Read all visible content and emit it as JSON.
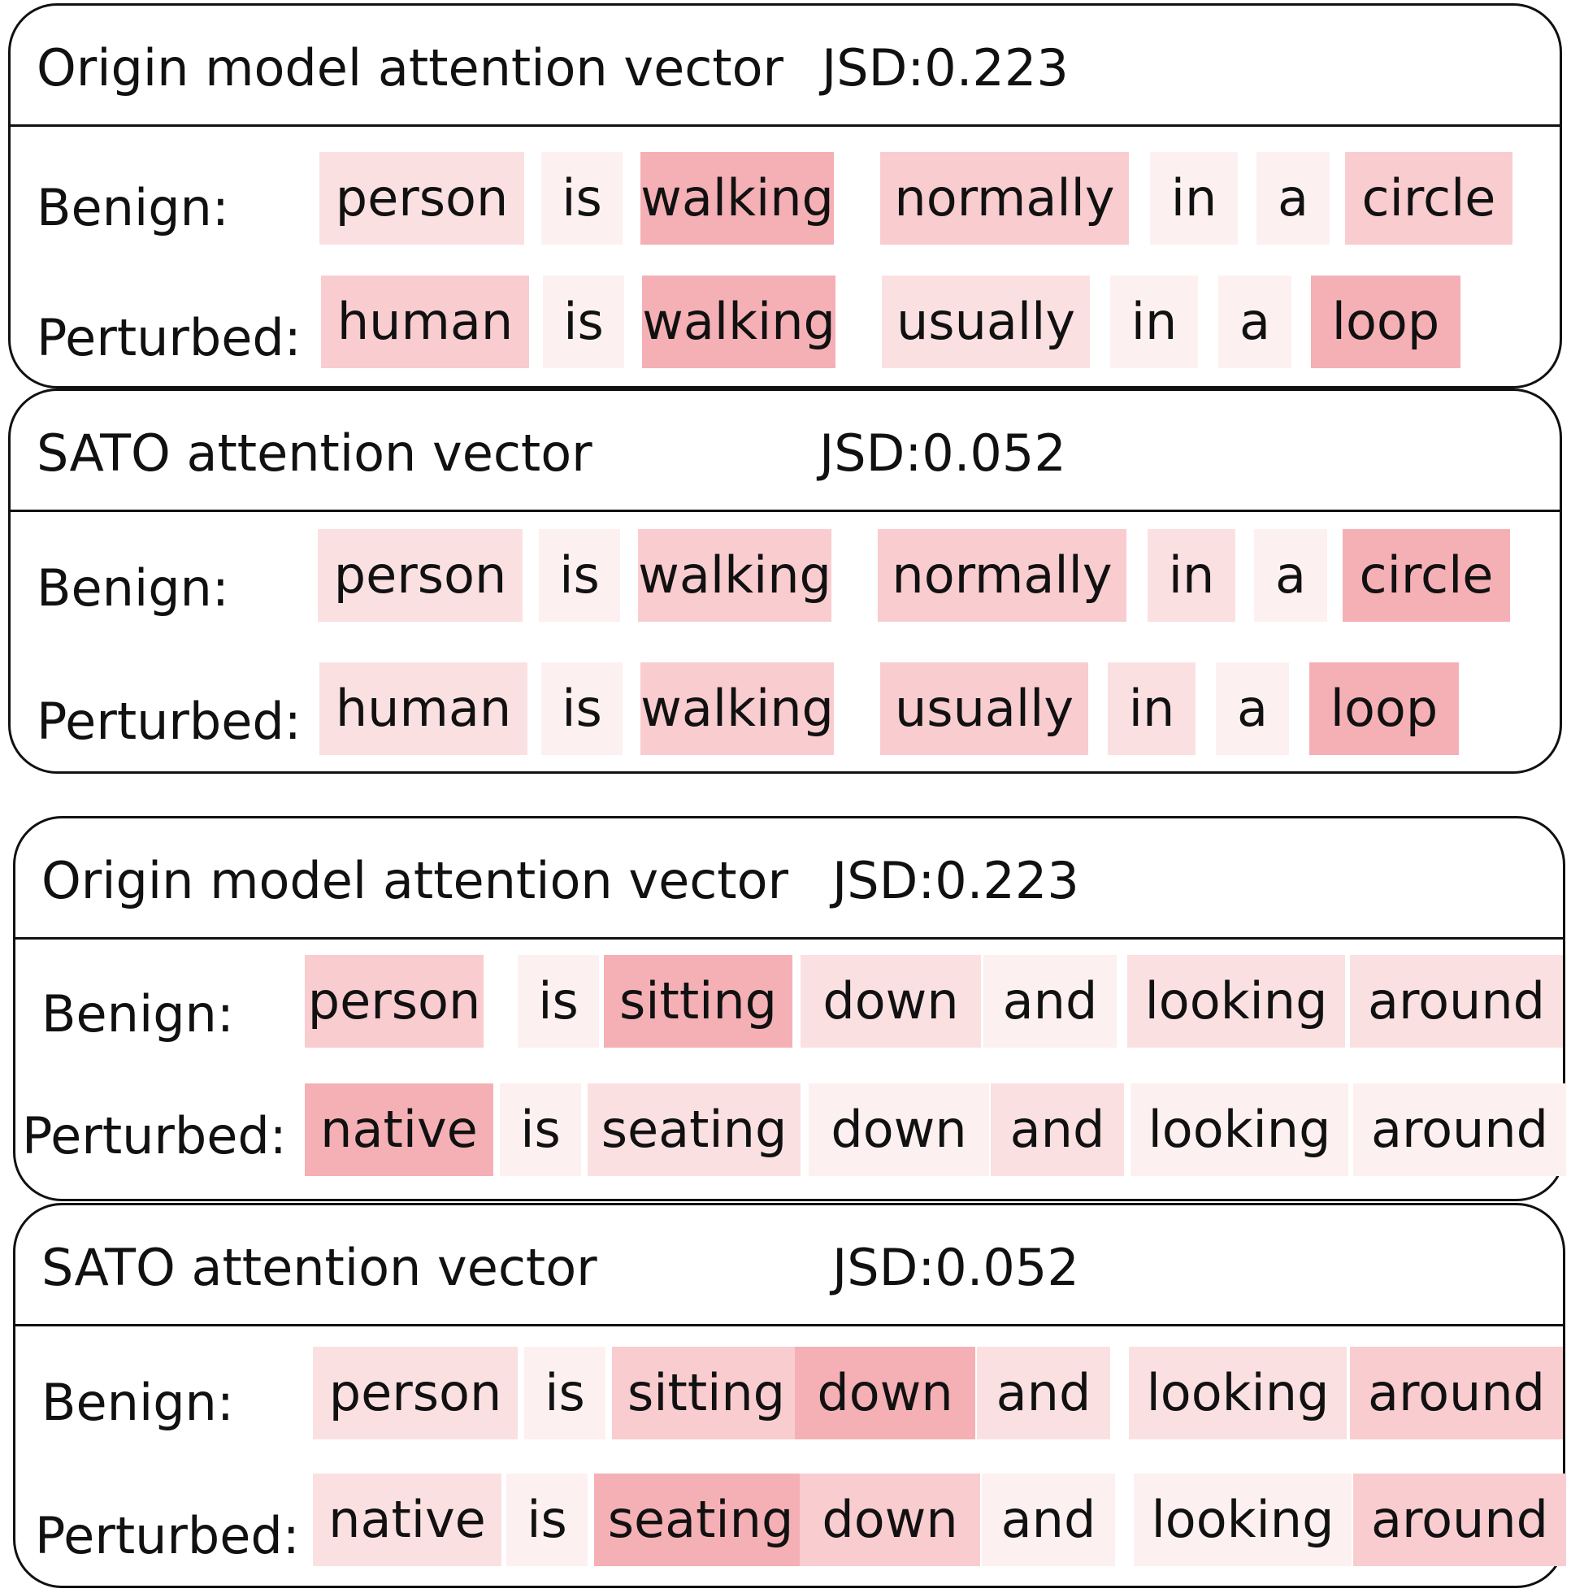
{
  "colors": {
    "border": "#111111",
    "text": "#111111",
    "attention_scale": [
      "#fdf0f1",
      "#fbe0e2",
      "#f9ccd0",
      "#f5b0b5"
    ]
  },
  "panels": [
    {
      "title": "Origin model attention vector",
      "jsd": "JSD:0.223",
      "rows": [
        {
          "label": "Benign:",
          "tokens": [
            {
              "text": "person",
              "level": 1
            },
            {
              "text": "is",
              "level": 0
            },
            {
              "text": "walking",
              "level": 3
            },
            {
              "text": "normally",
              "level": 2
            },
            {
              "text": "in",
              "level": 0
            },
            {
              "text": "a",
              "level": 0
            },
            {
              "text": "circle",
              "level": 2
            }
          ]
        },
        {
          "label": "Perturbed:",
          "tokens": [
            {
              "text": "human",
              "level": 2
            },
            {
              "text": "is",
              "level": 0
            },
            {
              "text": "walking",
              "level": 3
            },
            {
              "text": "usually",
              "level": 1
            },
            {
              "text": "in",
              "level": 0
            },
            {
              "text": "a",
              "level": 0
            },
            {
              "text": "loop",
              "level": 3
            }
          ]
        }
      ]
    },
    {
      "title": "SATO attention vector",
      "jsd": "JSD:0.052",
      "rows": [
        {
          "label": "Benign:",
          "tokens": [
            {
              "text": "person",
              "level": 1
            },
            {
              "text": "is",
              "level": 0
            },
            {
              "text": "walking",
              "level": 2
            },
            {
              "text": "normally",
              "level": 2
            },
            {
              "text": "in",
              "level": 1
            },
            {
              "text": "a",
              "level": 0
            },
            {
              "text": "circle",
              "level": 3
            }
          ]
        },
        {
          "label": "Perturbed:",
          "tokens": [
            {
              "text": "human",
              "level": 1
            },
            {
              "text": "is",
              "level": 0
            },
            {
              "text": "walking",
              "level": 2
            },
            {
              "text": "usually",
              "level": 2
            },
            {
              "text": "in",
              "level": 1
            },
            {
              "text": "a",
              "level": 0
            },
            {
              "text": "loop",
              "level": 3
            }
          ]
        }
      ]
    },
    {
      "title": "Origin model attention vector",
      "jsd": "JSD:0.223",
      "rows": [
        {
          "label": "Benign:",
          "tokens": [
            {
              "text": "person",
              "level": 2
            },
            {
              "text": "is",
              "level": 0
            },
            {
              "text": "sitting",
              "level": 3
            },
            {
              "text": "down",
              "level": 1
            },
            {
              "text": "and",
              "level": 0
            },
            {
              "text": "looking",
              "level": 1
            },
            {
              "text": "around",
              "level": 1
            }
          ]
        },
        {
          "label": "Perturbed:",
          "tokens": [
            {
              "text": "native",
              "level": 3
            },
            {
              "text": "is",
              "level": 0
            },
            {
              "text": "seating",
              "level": 1
            },
            {
              "text": "down",
              "level": 0
            },
            {
              "text": "and",
              "level": 1
            },
            {
              "text": "looking",
              "level": 0
            },
            {
              "text": "around",
              "level": 0
            }
          ]
        }
      ]
    },
    {
      "title": "SATO attention vector",
      "jsd": "JSD:0.052",
      "rows": [
        {
          "label": "Benign:",
          "tokens": [
            {
              "text": "person",
              "level": 1
            },
            {
              "text": "is",
              "level": 0
            },
            {
              "text": "sitting",
              "level": 2
            },
            {
              "text": "down",
              "level": 3
            },
            {
              "text": "and",
              "level": 1
            },
            {
              "text": "looking",
              "level": 1
            },
            {
              "text": "around",
              "level": 2
            }
          ]
        },
        {
          "label": "Perturbed:",
          "tokens": [
            {
              "text": "native",
              "level": 1
            },
            {
              "text": "is",
              "level": 0
            },
            {
              "text": "seating",
              "level": 3
            },
            {
              "text": "down",
              "level": 2
            },
            {
              "text": "and",
              "level": 0
            },
            {
              "text": "looking",
              "level": 0
            },
            {
              "text": "around",
              "level": 2
            }
          ]
        }
      ]
    }
  ]
}
